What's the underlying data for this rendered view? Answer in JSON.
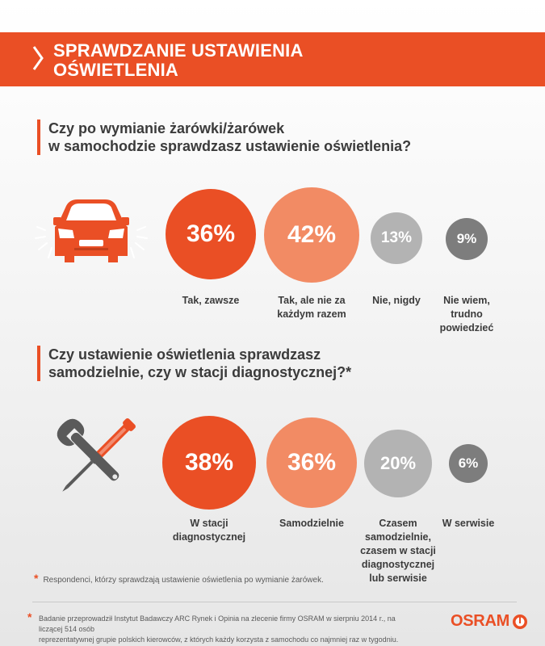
{
  "header": {
    "title_line1": "SPRAWDZANIE USTAWIENIA",
    "title_line2": "OŚWIETLENIA"
  },
  "section1": {
    "question_line1": "Czy po wymianie żarówki/żarówek",
    "question_line2": "w samochodzie sprawdzasz ustawienie oświetlenia?",
    "icon": "car-headlights-icon",
    "answers": [
      {
        "value": "36%",
        "label_lines": [
          "Tak, zawsze"
        ],
        "color": "#ea4f25"
      },
      {
        "value": "42%",
        "label_lines": [
          "Tak, ale nie za",
          "każdym razem"
        ],
        "color": "#f28b64"
      },
      {
        "value": "13%",
        "label_lines": [
          "Nie, nigdy"
        ],
        "color": "#b3b3b3"
      },
      {
        "value": "9%",
        "label_lines": [
          "Nie wiem,",
          "trudno",
          "powiedzieć"
        ],
        "color": "#7d7d7d"
      }
    ]
  },
  "section2": {
    "question_line1": "Czy ustawienie oświetlenia sprawdzasz",
    "question_line2": "samodzielnie, czy w stacji diagnostycznej?*",
    "icon": "wrench-screwdriver-icon",
    "answers": [
      {
        "value": "38%",
        "label_lines": [
          "W stacji",
          "diagnostycznej"
        ],
        "color": "#ea4f25"
      },
      {
        "value": "36%",
        "label_lines": [
          "Samodzielnie"
        ],
        "color": "#f28b64"
      },
      {
        "value": "20%",
        "label_lines": [
          "Czasem",
          "samodzielnie,",
          "czasem w stacji",
          "diagnostycznej",
          "lub serwisie"
        ],
        "color": "#b3b3b3"
      },
      {
        "value": "6%",
        "label_lines": [
          "W serwisie"
        ],
        "color": "#7d7d7d"
      }
    ]
  },
  "note": {
    "star": "*",
    "text": "Respondenci, którzy sprawdzają ustawienie oświetlenia po wymianie żarówek."
  },
  "footer": {
    "star": "*",
    "line1": "Badanie przeprowadził Instytut Badawczy ARC Rynek i Opinia na zlecenie firmy OSRAM w sierpniu 2014 r., na liczącej 514 osób",
    "line2": "reprezentatywnej grupie polskich kierowców, z których każdy korzysta z samochodu co najmniej raz w tygodniu."
  },
  "logo": {
    "text": "OSRAM",
    "color": "#ea4f25"
  }
}
